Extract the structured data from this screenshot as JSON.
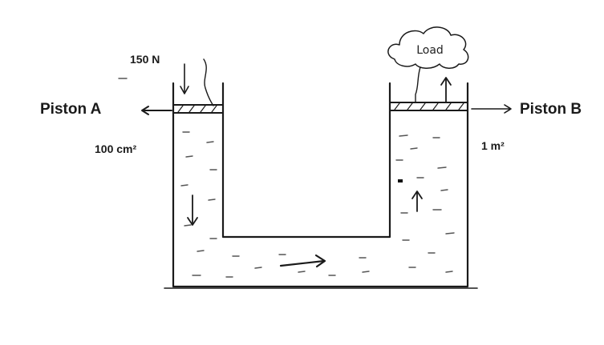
{
  "labels": {
    "piston_a": "Piston A",
    "piston_b": "Piston B",
    "force": "150 N",
    "area_a": "100 cm²",
    "area_b": "1 m²",
    "load": "Load"
  }
}
